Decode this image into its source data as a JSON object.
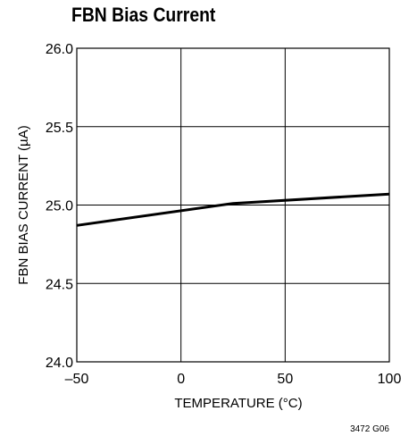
{
  "chart_data": {
    "type": "line",
    "title": "FBN Bias Current",
    "xlabel": "TEMPERATURE (°C)",
    "ylabel": "FBN BIAS CURRENT (µA)",
    "xlim": [
      -50,
      100
    ],
    "ylim": [
      24.0,
      26.0
    ],
    "xticks": [
      -50,
      0,
      50,
      100
    ],
    "xtick_labels": [
      "–50",
      "0",
      "50",
      "100"
    ],
    "yticks": [
      24.0,
      24.5,
      25.0,
      25.5,
      26.0
    ],
    "ytick_labels": [
      "24.0",
      "24.5",
      "25.0",
      "25.5",
      "26.0"
    ],
    "grid": true,
    "series": [
      {
        "x": [
          -50,
          25,
          100
        ],
        "y": [
          24.87,
          25.01,
          25.07
        ]
      }
    ],
    "annotation": "3472 G06"
  }
}
